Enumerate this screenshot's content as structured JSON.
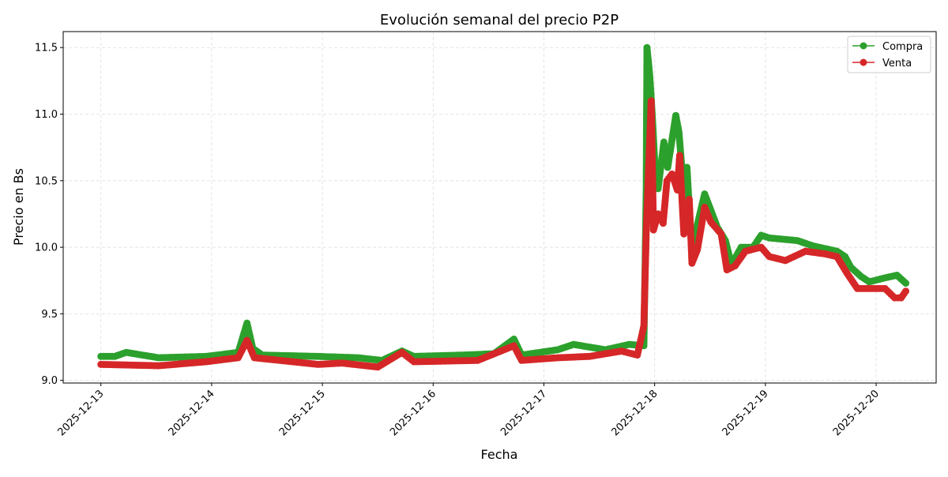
{
  "chart_data": {
    "type": "line",
    "title": "Evolución semanal del precio P2P",
    "xlabel": "Fecha",
    "ylabel": "Precio en Bs",
    "xlim": [
      "2025-12-12T15:50",
      "2025-12-20T13:00"
    ],
    "ylim": [
      8.98,
      11.62
    ],
    "x_ticks": [
      "2025-12-13",
      "2025-12-14",
      "2025-12-15",
      "2025-12-16",
      "2025-12-17",
      "2025-12-18",
      "2025-12-19",
      "2025-12-20"
    ],
    "y_ticks": [
      "9.0",
      "9.5",
      "10.0",
      "10.5",
      "11.0",
      "11.5"
    ],
    "grid": true,
    "legend_position": "top-right",
    "series": [
      {
        "name": "Compra",
        "color": "#2ca02c",
        "points": [
          [
            "2025-12-13T00:00",
            9.18
          ],
          [
            "2025-12-13T03:00",
            9.18
          ],
          [
            "2025-12-13T05:30",
            9.21
          ],
          [
            "2025-12-13T12:30",
            9.17
          ],
          [
            "2025-12-13T22:50",
            9.18
          ],
          [
            "2025-12-14T05:45",
            9.21
          ],
          [
            "2025-12-14T07:40",
            9.43
          ],
          [
            "2025-12-14T08:55",
            9.24
          ],
          [
            "2025-12-14T11:00",
            9.19
          ],
          [
            "2025-12-14T23:05",
            9.18
          ],
          [
            "2025-12-15T07:40",
            9.17
          ],
          [
            "2025-12-15T12:55",
            9.15
          ],
          [
            "2025-12-15T17:15",
            9.22
          ],
          [
            "2025-12-15T19:50",
            9.18
          ],
          [
            "2025-12-16T06:15",
            9.19
          ],
          [
            "2025-12-16T13:10",
            9.2
          ],
          [
            "2025-12-16T17:30",
            9.31
          ],
          [
            "2025-12-16T19:10",
            9.19
          ],
          [
            "2025-12-17T03:00",
            9.23
          ],
          [
            "2025-12-17T06:25",
            9.27
          ],
          [
            "2025-12-17T13:20",
            9.23
          ],
          [
            "2025-12-17T18:30",
            9.27
          ],
          [
            "2025-12-17T21:40",
            9.26
          ],
          [
            "2025-12-17T22:10",
            10.41
          ],
          [
            "2025-12-17T22:20",
            11.5
          ],
          [
            "2025-12-17T22:55",
            11.3
          ],
          [
            "2025-12-17T23:25",
            11.03
          ],
          [
            "2025-12-18T00:05",
            10.6
          ],
          [
            "2025-12-18T00:45",
            10.44
          ],
          [
            "2025-12-18T02:00",
            10.79
          ],
          [
            "2025-12-18T02:50",
            10.6
          ],
          [
            "2025-12-18T04:35",
            10.99
          ],
          [
            "2025-12-18T05:15",
            10.87
          ],
          [
            "2025-12-18T06:10",
            10.48
          ],
          [
            "2025-12-18T07:00",
            10.6
          ],
          [
            "2025-12-18T08:05",
            9.95
          ],
          [
            "2025-12-18T09:15",
            10.17
          ],
          [
            "2025-12-18T10:50",
            10.4
          ],
          [
            "2025-12-18T11:50",
            10.31
          ],
          [
            "2025-12-18T13:35",
            10.15
          ],
          [
            "2025-12-18T15:20",
            10.05
          ],
          [
            "2025-12-18T16:40",
            9.87
          ],
          [
            "2025-12-18T18:45",
            10.0
          ],
          [
            "2025-12-18T21:20",
            10.0
          ],
          [
            "2025-12-18T23:05",
            10.09
          ],
          [
            "2025-12-19T00:50",
            10.07
          ],
          [
            "2025-12-19T06:55",
            10.05
          ],
          [
            "2025-12-19T10:20",
            10.01
          ],
          [
            "2025-12-19T12:55",
            9.99
          ],
          [
            "2025-12-19T15:30",
            9.97
          ],
          [
            "2025-12-19T17:15",
            9.93
          ],
          [
            "2025-12-19T18:30",
            9.85
          ],
          [
            "2025-12-19T20:45",
            9.78
          ],
          [
            "2025-12-19T22:30",
            9.74
          ],
          [
            "2025-12-20T01:55",
            9.77
          ],
          [
            "2025-12-20T04:30",
            9.79
          ],
          [
            "2025-12-20T06:25",
            9.73
          ]
        ]
      },
      {
        "name": "Venta",
        "color": "#d62728",
        "points": [
          [
            "2025-12-13T00:00",
            9.12
          ],
          [
            "2025-12-13T12:30",
            9.11
          ],
          [
            "2025-12-13T22:50",
            9.14
          ],
          [
            "2025-12-14T05:45",
            9.17
          ],
          [
            "2025-12-14T07:40",
            9.3
          ],
          [
            "2025-12-14T09:15",
            9.17
          ],
          [
            "2025-12-14T23:05",
            9.12
          ],
          [
            "2025-12-15T04:15",
            9.13
          ],
          [
            "2025-12-15T12:00",
            9.1
          ],
          [
            "2025-12-15T17:15",
            9.21
          ],
          [
            "2025-12-15T19:50",
            9.14
          ],
          [
            "2025-12-16T09:40",
            9.15
          ],
          [
            "2025-12-16T17:30",
            9.26
          ],
          [
            "2025-12-16T19:10",
            9.15
          ],
          [
            "2025-12-17T03:00",
            9.17
          ],
          [
            "2025-12-17T09:55",
            9.18
          ],
          [
            "2025-12-17T16:50",
            9.22
          ],
          [
            "2025-12-17T20:15",
            9.19
          ],
          [
            "2025-12-17T21:40",
            9.41
          ],
          [
            "2025-12-17T22:10",
            10.1
          ],
          [
            "2025-12-17T22:30",
            10.42
          ],
          [
            "2025-12-17T23:15",
            11.1
          ],
          [
            "2025-12-17T23:45",
            10.13
          ],
          [
            "2025-12-18T00:45",
            10.25
          ],
          [
            "2025-12-18T01:50",
            10.18
          ],
          [
            "2025-12-18T02:40",
            10.5
          ],
          [
            "2025-12-18T03:45",
            10.55
          ],
          [
            "2025-12-18T04:55",
            10.43
          ],
          [
            "2025-12-18T05:25",
            10.69
          ],
          [
            "2025-12-18T06:20",
            10.1
          ],
          [
            "2025-12-18T07:30",
            10.36
          ],
          [
            "2025-12-18T08:05",
            9.88
          ],
          [
            "2025-12-18T09:15",
            9.98
          ],
          [
            "2025-12-18T10:50",
            10.3
          ],
          [
            "2025-12-18T12:10",
            10.19
          ],
          [
            "2025-12-18T14:25",
            10.1
          ],
          [
            "2025-12-18T15:40",
            9.83
          ],
          [
            "2025-12-18T17:25",
            9.86
          ],
          [
            "2025-12-18T19:40",
            9.97
          ],
          [
            "2025-12-18T23:05",
            10.0
          ],
          [
            "2025-12-19T00:50",
            9.93
          ],
          [
            "2025-12-19T04:20",
            9.9
          ],
          [
            "2025-12-19T08:40",
            9.97
          ],
          [
            "2025-12-19T12:55",
            9.95
          ],
          [
            "2025-12-19T15:30",
            9.93
          ],
          [
            "2025-12-19T17:35",
            9.81
          ],
          [
            "2025-12-19T19:55",
            9.69
          ],
          [
            "2025-12-19T22:30",
            9.69
          ],
          [
            "2025-12-20T01:55",
            9.69
          ],
          [
            "2025-12-20T04:00",
            9.62
          ],
          [
            "2025-12-20T05:25",
            9.62
          ],
          [
            "2025-12-20T06:25",
            9.67
          ]
        ]
      }
    ]
  }
}
